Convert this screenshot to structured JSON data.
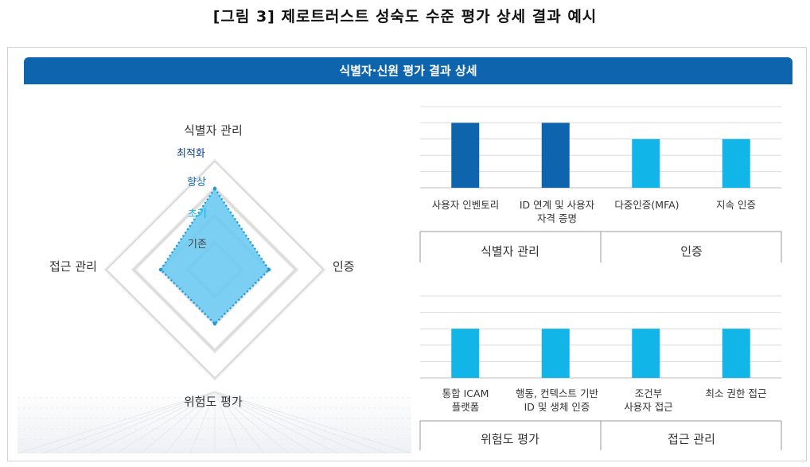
{
  "figure_title": "[그림 3] 제로트러스트 성숙도 수준 평가 상세 결과 예시",
  "banner_title": "식별자·신원 평가 결과 상세",
  "radar": {
    "axes": [
      "식별자 관리",
      "인증",
      "위험도 평가",
      "접근 관리"
    ],
    "levels": [
      "기존",
      "초기",
      "향상",
      "최적화"
    ],
    "level_colors": [
      "#444444",
      "#12b5e8",
      "#1a6fb3",
      "#0b3d91"
    ],
    "values": [
      3,
      2,
      2,
      2
    ],
    "fill_color": "#6ccaf2",
    "stroke_color": "#1a9ad6"
  },
  "chart_data": [
    {
      "type": "bar",
      "categories": [
        "사용자 인벤토리",
        "ID 연계 및 사용자\n자격 증명",
        "다중인증(MFA)",
        "지속 인증"
      ],
      "values": [
        4,
        4,
        3,
        3
      ],
      "colors": [
        "#0e64ad",
        "#0e64ad",
        "#12b5e8",
        "#12b5e8"
      ],
      "groups": [
        "식별자 관리",
        "인증"
      ],
      "ylim": [
        0,
        5
      ],
      "grid": true
    },
    {
      "type": "bar",
      "categories": [
        "통합 ICAM\n플랫폼",
        "행동, 컨텍스트 기반\nID 및 생체 인증",
        "조건부\n사용자 접근",
        "최소 권한 접근"
      ],
      "values": [
        3,
        3,
        3,
        3
      ],
      "colors": [
        "#12b5e8",
        "#12b5e8",
        "#12b5e8",
        "#12b5e8"
      ],
      "groups": [
        "위험도 평가",
        "접근 관리"
      ],
      "ylim": [
        0,
        5
      ],
      "grid": true
    }
  ]
}
